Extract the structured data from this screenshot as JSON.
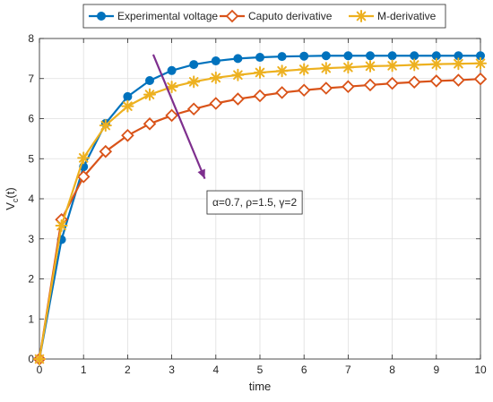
{
  "chart_data": {
    "type": "line",
    "xlabel": "time",
    "ylabel": "V",
    "ylabel_sub": "c",
    "ylabel_suffix": "(t)",
    "xlim": [
      0,
      10
    ],
    "ylim": [
      0,
      8
    ],
    "xticks": [
      0,
      1,
      2,
      3,
      4,
      5,
      6,
      7,
      8,
      9,
      10
    ],
    "yticks": [
      0,
      1,
      2,
      3,
      4,
      5,
      6,
      7,
      8
    ],
    "grid": true,
    "legend_placement": "top",
    "series": [
      {
        "name": "Experimental voltage",
        "color": "#0072BD",
        "marker": "circle",
        "x": [
          0,
          0.5,
          1,
          1.5,
          2,
          2.5,
          3,
          3.5,
          4,
          4.5,
          5,
          5.5,
          6,
          6.5,
          7,
          7.5,
          8,
          8.5,
          9,
          9.5,
          10
        ],
        "y": [
          0,
          2.98,
          4.8,
          5.88,
          6.55,
          6.95,
          7.2,
          7.35,
          7.44,
          7.5,
          7.53,
          7.55,
          7.56,
          7.57,
          7.57,
          7.57,
          7.57,
          7.57,
          7.57,
          7.57,
          7.57
        ]
      },
      {
        "name": "Caputo derivative",
        "color": "#D95319",
        "marker": "diamond",
        "x": [
          0,
          0.5,
          1,
          1.5,
          2,
          2.5,
          3,
          3.5,
          4,
          4.5,
          5,
          5.5,
          6,
          6.5,
          7,
          7.5,
          8,
          8.5,
          9,
          9.5,
          10
        ],
        "y": [
          0,
          3.48,
          4.55,
          5.18,
          5.58,
          5.87,
          6.08,
          6.24,
          6.38,
          6.49,
          6.57,
          6.65,
          6.71,
          6.76,
          6.8,
          6.84,
          6.88,
          6.91,
          6.94,
          6.96,
          6.99
        ]
      },
      {
        "name": "M-derivative",
        "color": "#EDB120",
        "marker": "asterisk",
        "x": [
          0,
          0.5,
          1,
          1.5,
          2,
          2.5,
          3,
          3.5,
          4,
          4.5,
          5,
          5.5,
          6,
          6.5,
          7,
          7.5,
          8,
          8.5,
          9,
          9.5,
          10
        ],
        "y": [
          0,
          3.33,
          5.02,
          5.83,
          6.31,
          6.6,
          6.79,
          6.92,
          7.02,
          7.09,
          7.15,
          7.19,
          7.23,
          7.26,
          7.28,
          7.31,
          7.32,
          7.34,
          7.36,
          7.37,
          7.38
        ]
      }
    ],
    "annotation": {
      "text": "α=0.7, ρ=1.5, γ=2",
      "arrow_color": "#7E2F8E",
      "arrow_from": [
        2.58,
        7.6
      ],
      "arrow_to": [
        3.75,
        4.5
      ],
      "box_anchor": [
        3.8,
        4.2
      ]
    }
  }
}
